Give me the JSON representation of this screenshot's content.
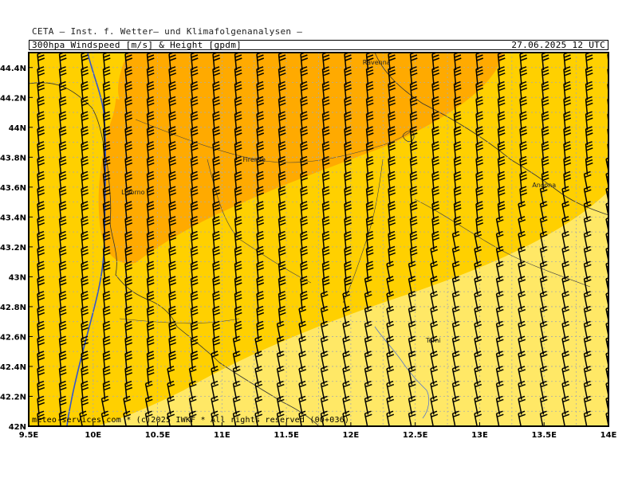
{
  "header": {
    "line1": "CETA — Inst. f. Wetter— und Klimafolgenanalysen —",
    "title": "300hpa_Windspeed_[m/s]_&_Height_[gpdm]",
    "timestamp": "27.06.2025 12 UTC"
  },
  "credit": "meteo-services.com * (c)2025 IWKF * All rights reserved (00+036)",
  "map": {
    "lon_range": [
      9.5,
      14.0
    ],
    "lat_range": [
      42.0,
      44.5
    ],
    "lat_ticks": [
      "44.4N",
      "44.2N",
      "44N",
      "43.8N",
      "43.6N",
      "43.4N",
      "43.2N",
      "43N",
      "42.8N",
      "42.6N",
      "42.4N",
      "42.2N",
      "42N"
    ],
    "lon_ticks": [
      "9.5E",
      "10E",
      "10.5E",
      "11E",
      "11.5E",
      "12E",
      "12.5E",
      "13E",
      "13.5E",
      "14E"
    ],
    "cities": [
      {
        "name": "Ravenna",
        "lon": 12.2,
        "lat": 44.42
      },
      {
        "name": "Firenze",
        "lon": 11.25,
        "lat": 43.77
      },
      {
        "name": "Livorno",
        "lon": 10.31,
        "lat": 43.55
      },
      {
        "name": "Ancona",
        "lon": 13.5,
        "lat": 43.6
      },
      {
        "name": "Terni",
        "lon": 12.64,
        "lat": 42.56
      }
    ],
    "colors": {
      "band_light": "#ffe866",
      "band_mid": "#ffd000",
      "band_dark": "#ffaa00",
      "grid": "#aaaaaa",
      "contour": "#3355cc",
      "barb": "#000000",
      "coast": "#333333"
    }
  }
}
